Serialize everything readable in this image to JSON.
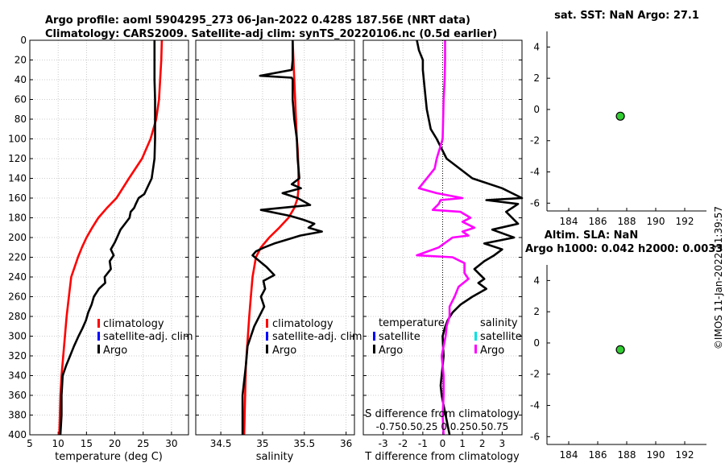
{
  "header": {
    "title_line1": "Argo profile: aoml 5904295_273 06-Jan-2022 0.428S 187.56E (NRT data)",
    "title_line2": "Climatology: CARS2009. Satellite-adj clim: synTS_20220106.nc (0.5d earlier)"
  },
  "credit": "©IMOS 11-Jan-2022 11:39:57",
  "colors": {
    "climatology": "#ff0000",
    "satellite": "#0000ff",
    "argo": "#000000",
    "salinity_argo": "#ff00ff",
    "salinity_sat": "#00e0e0",
    "marker": "#33cc33"
  },
  "depth_axis": {
    "ylim": [
      0,
      400
    ],
    "ticks": [
      0,
      20,
      40,
      60,
      80,
      100,
      120,
      140,
      160,
      180,
      200,
      220,
      240,
      260,
      280,
      300,
      320,
      340,
      360,
      380,
      400
    ]
  },
  "chart_data": [
    {
      "type": "line",
      "name": "temperature",
      "xlabel": "temperature (deg C)",
      "xlim": [
        5,
        33
      ],
      "xticks": [
        5,
        10,
        15,
        20,
        25,
        30
      ],
      "legend": [
        "climatology",
        "satellite-adj. clim",
        "Argo"
      ],
      "series": [
        {
          "name": "climatology",
          "color": "#ff0000",
          "x": [
            28.3,
            28.2,
            28.0,
            27.8,
            27.3,
            26.3,
            24.8,
            22.5,
            20.3,
            18.6,
            17.1,
            16.0,
            15.0,
            14.2,
            13.5,
            12.9,
            12.3,
            11.9,
            11.5,
            11.2,
            10.9,
            10.6,
            10.4,
            10.2
          ],
          "y": [
            0,
            20,
            40,
            60,
            80,
            100,
            120,
            140,
            160,
            170,
            180,
            190,
            200,
            210,
            220,
            230,
            240,
            260,
            280,
            300,
            320,
            340,
            360,
            400
          ]
        },
        {
          "name": "Argo",
          "color": "#000000",
          "x": [
            27.0,
            27.0,
            27.0,
            27.0,
            27.0,
            27.1,
            27.1,
            27.1,
            27.0,
            26.5,
            25.2,
            24.2,
            23.7,
            23.4,
            22.8,
            22.6,
            21.8,
            21.0,
            20.4,
            20.0,
            19.3,
            19.8,
            19.1,
            19.3,
            18.2,
            18.3,
            17.2,
            16.3,
            15.9,
            15.3,
            14.9,
            14.3,
            13.6,
            12.8,
            12.1,
            11.4,
            10.8,
            10.6,
            10.6,
            10.4
          ],
          "y": [
            0,
            10,
            20,
            30,
            40,
            60,
            80,
            100,
            120,
            140,
            156,
            160,
            166,
            170,
            174,
            180,
            186,
            192,
            200,
            205,
            212,
            218,
            224,
            232,
            240,
            246,
            252,
            260,
            268,
            276,
            284,
            292,
            300,
            310,
            320,
            330,
            340,
            360,
            380,
            400
          ]
        }
      ]
    },
    {
      "type": "line",
      "name": "salinity",
      "xlabel": "salinity",
      "xlim": [
        34.2,
        36.1
      ],
      "xticks": [
        34.5,
        35,
        35.5,
        36
      ],
      "xticklabels": [
        "34.5",
        "35",
        "35.5",
        "36"
      ],
      "legend": [
        "climatology",
        "satellite-adj. clim",
        "Argo"
      ],
      "series": [
        {
          "name": "climatology",
          "color": "#ff0000",
          "x": [
            35.36,
            35.37,
            35.38,
            35.39,
            35.4,
            35.41,
            35.42,
            35.43,
            35.43,
            35.42,
            35.38,
            35.31,
            35.2,
            35.08,
            34.98,
            34.92,
            34.88,
            34.86,
            34.84,
            34.8,
            34.78
          ],
          "y": [
            0,
            20,
            40,
            60,
            80,
            100,
            110,
            130,
            150,
            160,
            170,
            180,
            190,
            200,
            210,
            220,
            240,
            260,
            280,
            330,
            400
          ]
        },
        {
          "name": "Argo",
          "color": "#000000",
          "x": [
            35.36,
            35.36,
            35.35,
            34.97,
            35.35,
            35.36,
            35.36,
            35.38,
            35.41,
            35.42,
            35.44,
            35.35,
            35.46,
            35.24,
            35.42,
            35.57,
            34.98,
            35.33,
            35.49,
            35.62,
            35.55,
            35.71,
            35.45,
            35.3,
            35.14,
            35.02,
            34.92,
            34.88,
            34.95,
            35.05,
            35.14,
            35.01,
            35.03,
            34.98,
            35.02,
            34.9,
            34.82,
            34.8,
            34.76,
            34.76
          ],
          "y": [
            0,
            20,
            30,
            36,
            38,
            40,
            60,
            80,
            100,
            120,
            140,
            146,
            150,
            155,
            160,
            167,
            172,
            178,
            182,
            186,
            190,
            194,
            198,
            202,
            206,
            210,
            214,
            218,
            223,
            230,
            238,
            244,
            252,
            260,
            270,
            290,
            310,
            330,
            360,
            400
          ]
        }
      ]
    },
    {
      "type": "line",
      "name": "difference",
      "xlabel": "T difference from climatology",
      "xlim": [
        -4,
        4
      ],
      "xticks": [
        -3,
        -2,
        -1,
        0,
        1,
        2,
        3
      ],
      "xticklabels": [
        "-3",
        "-2",
        "-1",
        "0",
        "1",
        "2",
        "3"
      ],
      "top_label": "S difference from climatology",
      "top_ticklabels": "-0.750.50.25 0 0.250.50.75",
      "legend_temperature": [
        "temperature",
        "satellite",
        "Argo"
      ],
      "legend_salinity": [
        "salinity",
        "satellite",
        "Argo"
      ],
      "series": [
        {
          "name": "T difference (Argo)",
          "color": "#000000",
          "x": [
            -1.3,
            -1.2,
            -1.0,
            -1.0,
            -0.9,
            -0.8,
            -0.6,
            -0.3,
            0.2,
            1.5,
            3.0,
            4.0,
            2.2,
            3.8,
            3.2,
            3.8,
            2.5,
            3.6,
            2.1,
            3.0,
            2.6,
            2.1,
            1.6,
            2.1,
            1.8,
            2.2,
            1.5,
            0.9,
            0.5,
            0.25,
            0.1,
            0.0,
            0.02,
            0.05,
            0.0,
            -0.1,
            -0.05,
            0.05,
            0.2,
            0.35
          ],
          "y": [
            0,
            10,
            20,
            30,
            50,
            70,
            90,
            100,
            120,
            140,
            150,
            160,
            162,
            166,
            174,
            186,
            192,
            200,
            206,
            212,
            218,
            224,
            232,
            242,
            246,
            252,
            260,
            268,
            276,
            284,
            292,
            300,
            310,
            320,
            330,
            350,
            360,
            370,
            385,
            400
          ]
        },
        {
          "name": "S difference (Argo)",
          "color": "#ff00ff",
          "x": [
            0.12,
            0.12,
            0.1,
            0.05,
            0.0,
            -0.3,
            -0.4,
            -1.2,
            -0.3,
            1.0,
            -0.1,
            -0.2,
            -0.5,
            0.9,
            1.4,
            1.0,
            1.6,
            1.0,
            1.3,
            0.5,
            -0.2,
            -1.3,
            0.5,
            1.1,
            1.1,
            1.3,
            0.8,
            0.6,
            0.35,
            0.35,
            0.2,
            0.15,
            -0.05,
            0.05,
            0.05,
            0.0,
            0.05
          ],
          "y": [
            0,
            20,
            40,
            60,
            100,
            120,
            130,
            150,
            155,
            160,
            162,
            166,
            172,
            174,
            180,
            184,
            190,
            194,
            198,
            200,
            210,
            218,
            220,
            226,
            236,
            242,
            250,
            260,
            270,
            280,
            290,
            300,
            320,
            340,
            360,
            380,
            400
          ]
        }
      ]
    },
    {
      "type": "scatter",
      "name": "sst",
      "title": "sat. SST: NaN Argo: 27.1",
      "xlim": [
        182.5,
        193.5
      ],
      "ylim": [
        -6.5,
        5
      ],
      "xticks": [
        184,
        186,
        188,
        190,
        192
      ],
      "yticks": [
        4,
        2,
        0,
        -2,
        -4,
        -6
      ],
      "points": [
        {
          "x": 187.56,
          "y": -0.43
        }
      ]
    },
    {
      "type": "scatter",
      "name": "sla",
      "title": "Altim. SLA: NaN",
      "subtitle": "Argo h1000: 0.042 h2000: 0.0033",
      "xlim": [
        182.5,
        193.5
      ],
      "ylim": [
        -6.5,
        5
      ],
      "xticks": [
        184,
        186,
        188,
        190,
        192
      ],
      "yticks": [
        4,
        2,
        0,
        -2,
        -4,
        -6
      ],
      "points": [
        {
          "x": 187.56,
          "y": -0.43
        }
      ]
    }
  ]
}
